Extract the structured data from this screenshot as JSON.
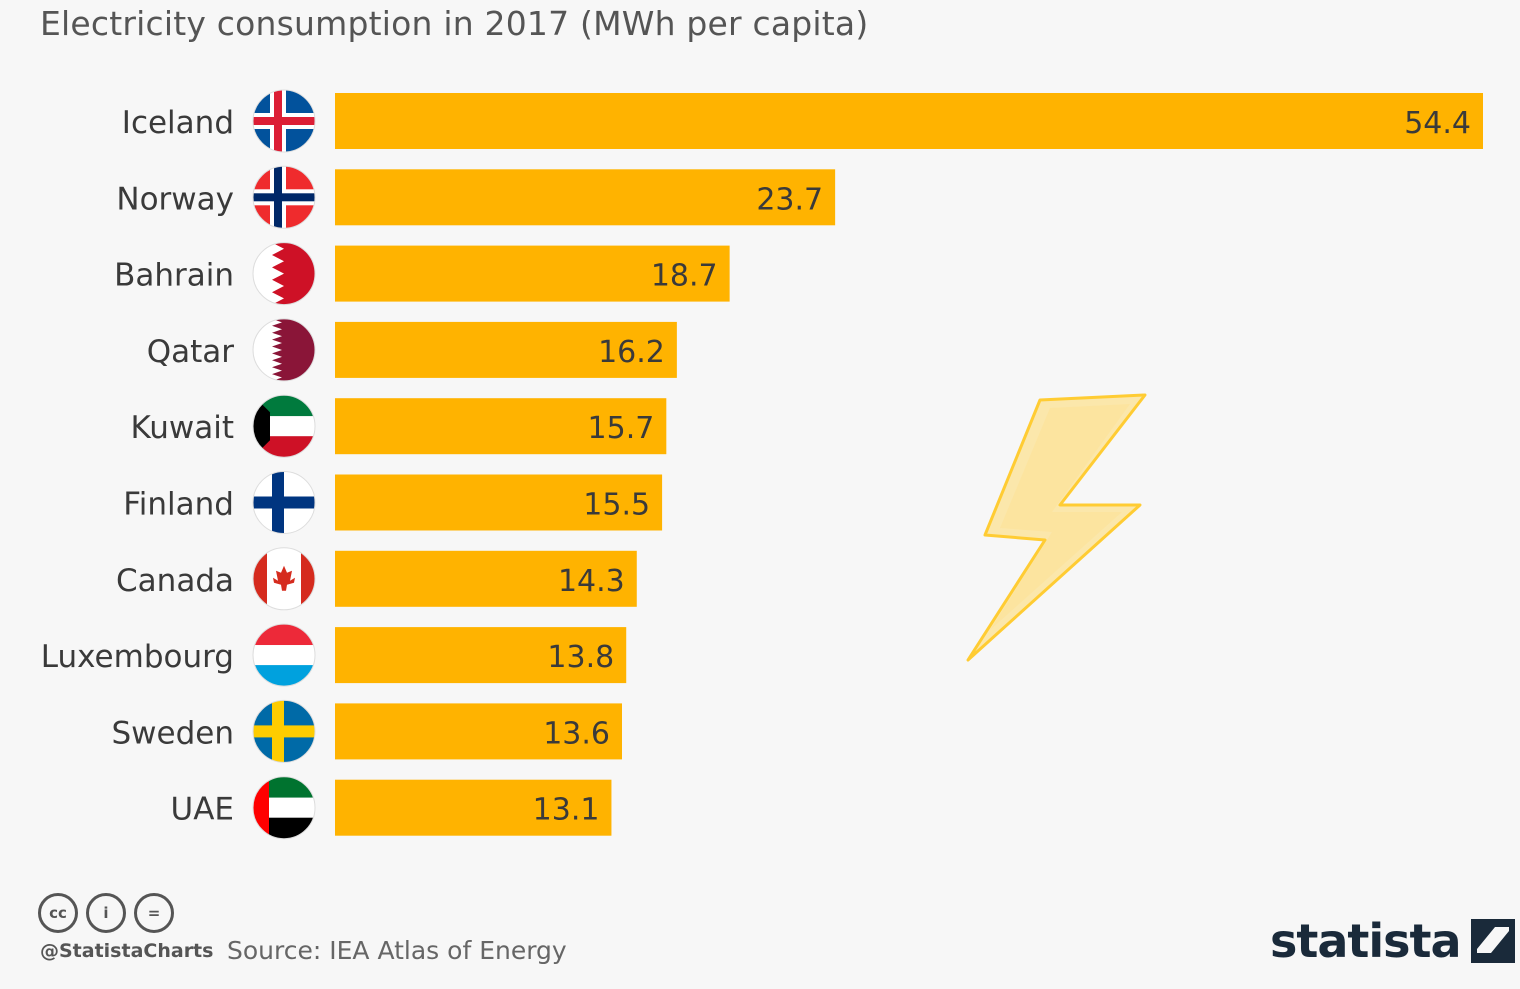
{
  "subtitle": "Electricity consumption in 2017 (MWh per capita)",
  "chart_data": {
    "type": "bar",
    "orientation": "horizontal",
    "title": "Electricity consumption in 2017 (MWh per capita)",
    "xlabel": "",
    "ylabel": "",
    "xlim": [
      0,
      54.4
    ],
    "grid": false,
    "bar_color": "#ffb300",
    "categories": [
      "Iceland",
      "Norway",
      "Bahrain",
      "Qatar",
      "Kuwait",
      "Finland",
      "Canada",
      "Luxembourg",
      "Sweden",
      "UAE"
    ],
    "values": [
      54.4,
      23.7,
      18.7,
      16.2,
      15.7,
      15.5,
      14.3,
      13.8,
      13.6,
      13.1
    ],
    "value_labels": [
      "54.4",
      "23.7",
      "18.7",
      "16.2",
      "15.7",
      "15.5",
      "14.3",
      "13.8",
      "13.6",
      "13.1"
    ],
    "flags": [
      "iceland-flag-icon",
      "norway-flag-icon",
      "bahrain-flag-icon",
      "qatar-flag-icon",
      "kuwait-flag-icon",
      "finland-flag-icon",
      "canada-flag-icon",
      "luxembourg-flag-icon",
      "sweden-flag-icon",
      "uae-flag-icon"
    ]
  },
  "footer": {
    "handle": "@StatistaCharts",
    "source": "Source: IEA Atlas of Energy",
    "brand": "statista",
    "cc_icons": [
      "cc-icon",
      "by-icon",
      "nd-icon"
    ],
    "cc_text": [
      "cc",
      "i",
      "="
    ]
  },
  "colors": {
    "bar": "#ffb300",
    "text": "#3a3a3a",
    "background": "#f7f7f7",
    "bolt": "#ffd24d"
  }
}
